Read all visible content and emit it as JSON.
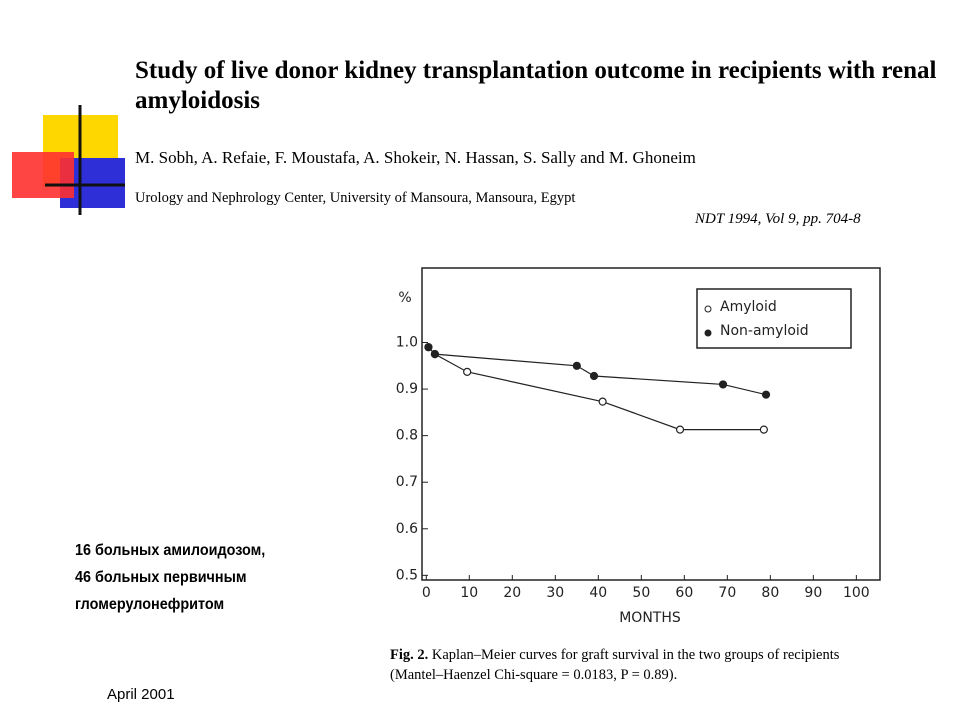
{
  "title": "Study of live donor kidney transplantation outcome in recipients with renal amyloidosis",
  "authors": "M. Sobh, A. Refaie, F. Moustafa, A. Shokeir, N. Hassan, S. Sally and M. Ghoneim",
  "affiliation": "Urology and Nephrology Center, University of Mansoura, Mansoura, Egypt",
  "citation": "NDT  1994, Vol 9, pp. 704-8",
  "note_lines": [
    "16 больных амилоидозом,",
    "46 больных первичным",
    "гломерулонефритом"
  ],
  "date": "April 2001",
  "caption": {
    "label": "Fig. 2.",
    "text": "Kaplan–Meier curves for graft survival in the two groups of recipients (Mantel–Haenzel Chi-square = 0.0183, P = 0.89)."
  },
  "chart_data": {
    "type": "line",
    "y_label": "%",
    "x_label": "MONTHS",
    "xlim": [
      -1,
      105.5
    ],
    "xticks": [
      0,
      10,
      20,
      30,
      40,
      50,
      60,
      70,
      80,
      90,
      100
    ],
    "ylim": [
      0.49,
      1.16
    ],
    "yticks": [
      {
        "value": 1,
        "label": "1.0"
      },
      0.9,
      0.8,
      0.7,
      0.6,
      0.5
    ],
    "legend": "upper right",
    "series": [
      {
        "name": "Amyloid",
        "color": "#222222",
        "marker": "open",
        "x": [
          0.5,
          2,
          9.5,
          41,
          59,
          78.5
        ],
        "values": [
          0.99,
          0.975,
          0.937,
          0.873,
          0.813,
          0.813
        ]
      },
      {
        "name": "Non-amyloid",
        "color": "#222222",
        "marker": "filled",
        "x": [
          0.5,
          2,
          35,
          39,
          69,
          79
        ],
        "values": [
          0.99,
          0.975,
          0.95,
          0.928,
          0.91,
          0.888
        ]
      }
    ]
  }
}
